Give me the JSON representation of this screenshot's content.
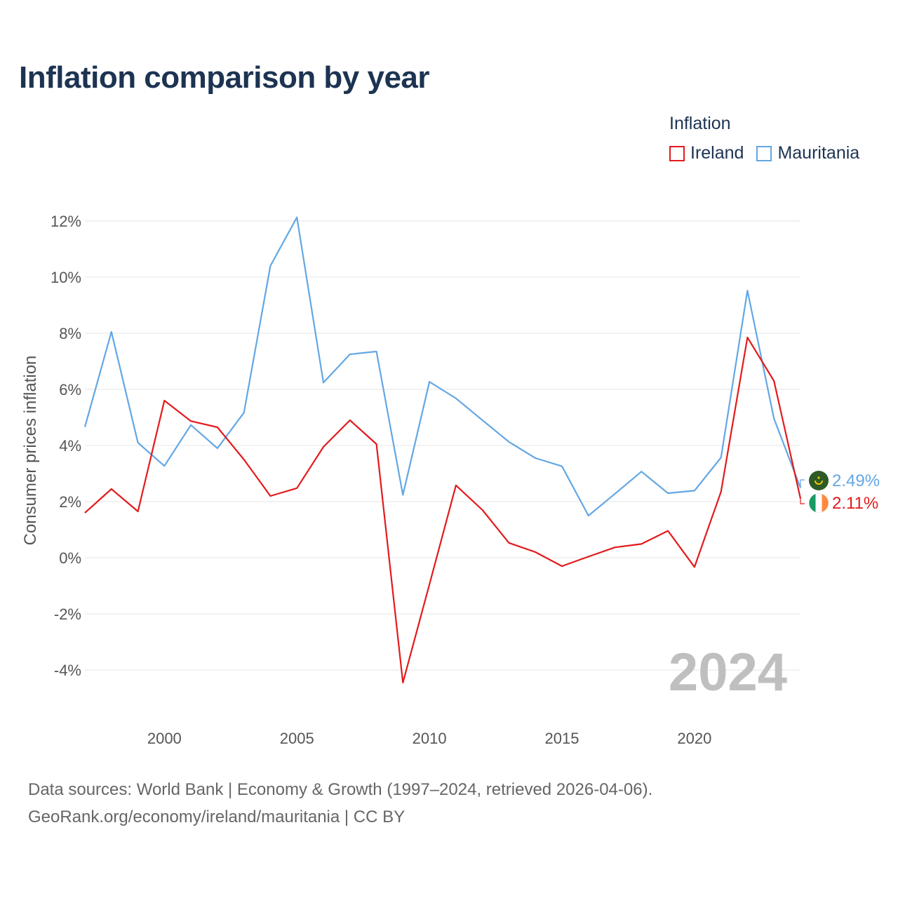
{
  "title": "Inflation comparison by year",
  "legend": {
    "title": "Inflation",
    "items": [
      {
        "label": "Ireland",
        "color": "#e31a1c"
      },
      {
        "label": "Mauritania",
        "color": "#63a7e4"
      }
    ]
  },
  "source": {
    "line1": "Data sources: World Bank | Economy & Growth (1997–2024, retrieved 2026-04-06).",
    "line2": "GeoRank.org/economy/ireland/mauritania | CC BY"
  },
  "chart_data": {
    "type": "line",
    "title": "Inflation comparison by year",
    "xlabel": "",
    "ylabel": "Consumer prices inflation",
    "x": [
      1997,
      1998,
      1999,
      2000,
      2001,
      2002,
      2003,
      2004,
      2005,
      2006,
      2007,
      2008,
      2009,
      2010,
      2011,
      2012,
      2013,
      2014,
      2015,
      2016,
      2017,
      2018,
      2019,
      2020,
      2021,
      2022,
      2023,
      2024
    ],
    "xlim": [
      1997,
      2024
    ],
    "ylim": [
      -5,
      12.5
    ],
    "x_ticks": [
      2000,
      2005,
      2010,
      2015,
      2020
    ],
    "x_tick_labels": [
      "2000",
      "2005",
      "2010",
      "2015",
      "2020"
    ],
    "y_ticks": [
      -4,
      -2,
      0,
      2,
      4,
      6,
      8,
      10,
      12
    ],
    "y_tick_labels": [
      "-4%",
      "-2%",
      "0%",
      "2%",
      "4%",
      "6%",
      "8%",
      "10%",
      "12%"
    ],
    "grid": true,
    "legend_position": "top-right",
    "watermark": "2024",
    "series": [
      {
        "name": "Ireland",
        "color": "#e31a1c",
        "values": [
          1.6,
          2.45,
          1.65,
          5.6,
          4.87,
          4.65,
          3.5,
          2.2,
          2.48,
          3.95,
          4.9,
          4.05,
          -4.45,
          -0.95,
          2.58,
          1.7,
          0.53,
          0.2,
          -0.3,
          0.04,
          0.37,
          0.49,
          0.96,
          -0.33,
          2.35,
          7.85,
          6.3,
          2.11
        ],
        "end_label": "2.11%"
      },
      {
        "name": "Mauritania",
        "color": "#63a7e4",
        "values": [
          4.66,
          8.05,
          4.1,
          3.27,
          4.73,
          3.9,
          5.17,
          10.4,
          12.13,
          6.24,
          7.25,
          7.35,
          2.24,
          6.27,
          5.68,
          4.9,
          4.13,
          3.55,
          3.26,
          1.5,
          2.28,
          3.07,
          2.3,
          2.39,
          3.57,
          9.52,
          4.96,
          2.49
        ],
        "end_label": "2.49%"
      }
    ]
  }
}
